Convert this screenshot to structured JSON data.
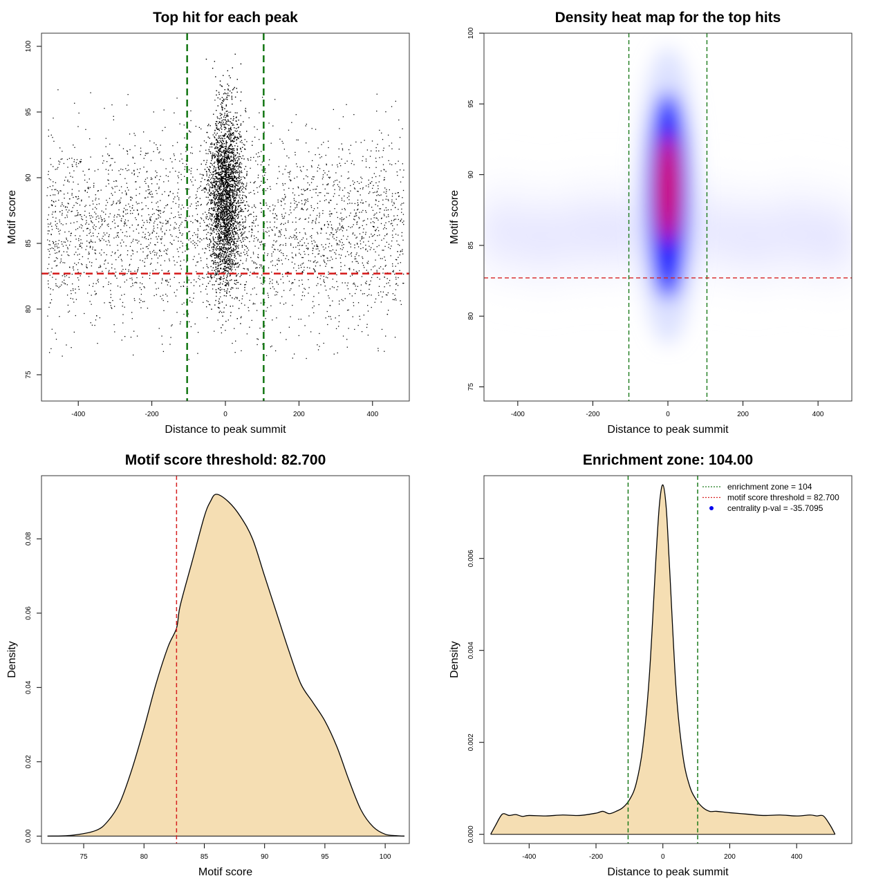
{
  "chart_data": [
    {
      "type": "scatter",
      "title": "Top hit for each peak",
      "xlabel": "Distance to peak summit",
      "ylabel": "Motif score",
      "xlim": [
        -500,
        500
      ],
      "ylim": [
        73,
        101
      ],
      "xticks": [
        -400,
        -200,
        0,
        200,
        400
      ],
      "yticks": [
        75,
        80,
        85,
        90,
        95,
        100
      ],
      "points_description": "thousands of points: uniform background over distance -500..500 with scores ~76-96, dense column within +/-60 of summit with scores ~79-99",
      "hlines": [
        {
          "y": 82.7,
          "color": "#d62020"
        }
      ],
      "vlines": [
        {
          "x": -104,
          "color": "#1a7a1a"
        },
        {
          "x": 104,
          "color": "#1a7a1a"
        }
      ]
    },
    {
      "type": "heatmap",
      "title": "Density heat map for the top hits",
      "xlabel": "Distance to peak summit",
      "ylabel": "Motif score",
      "xlim": [
        -490,
        490
      ],
      "ylim": [
        74,
        100
      ],
      "xticks": [
        -400,
        -200,
        0,
        200,
        400
      ],
      "yticks": [
        75,
        80,
        85,
        90,
        95,
        100
      ],
      "hotspot": {
        "x": 0,
        "y": 88.5
      },
      "color_scale": [
        "#ffffff",
        "#0000ff",
        "#ff0000"
      ],
      "hlines": [
        {
          "y": 82.7,
          "color": "#d62020"
        }
      ],
      "vlines": [
        {
          "x": -104,
          "color": "#1a7a1a"
        },
        {
          "x": 104,
          "color": "#1a7a1a"
        }
      ]
    },
    {
      "type": "area",
      "title": "Motif score threshold: 82.700",
      "xlabel": "Motif score",
      "ylabel": "Density",
      "xlim": [
        71.5,
        102
      ],
      "ylim": [
        -0.002,
        0.097
      ],
      "xticks": [
        75,
        80,
        85,
        90,
        95,
        100
      ],
      "yticks": [
        0.0,
        0.02,
        0.04,
        0.06,
        0.08
      ],
      "ytick_labels": [
        "0.00",
        "0.02",
        "0.04",
        "0.06",
        "0.08"
      ],
      "x": [
        72,
        74,
        76,
        77,
        78,
        79,
        80,
        81,
        82,
        82.7,
        83,
        84,
        85,
        85.5,
        86,
        87,
        88,
        89,
        90,
        91,
        92,
        93,
        94,
        95,
        96,
        97,
        98,
        99,
        100,
        101,
        101.6
      ],
      "values": [
        0,
        0.0002,
        0.0015,
        0.004,
        0.009,
        0.018,
        0.029,
        0.041,
        0.051,
        0.056,
        0.062,
        0.074,
        0.086,
        0.09,
        0.092,
        0.09,
        0.086,
        0.08,
        0.07,
        0.06,
        0.05,
        0.041,
        0.036,
        0.031,
        0.024,
        0.015,
        0.007,
        0.0025,
        0.0005,
        0.0001,
        0
      ],
      "fill": "#f5deb3",
      "vlines": [
        {
          "x": 82.7,
          "color": "#d62020"
        }
      ]
    },
    {
      "type": "area",
      "title": "Enrichment zone: 104.00",
      "xlabel": "Distance to peak summit",
      "ylabel": "Density",
      "xlim": [
        -535,
        565
      ],
      "ylim": [
        -0.0002,
        0.0078
      ],
      "xticks": [
        -400,
        -200,
        0,
        200,
        400
      ],
      "yticks": [
        0.0,
        0.002,
        0.004,
        0.006
      ],
      "ytick_labels": [
        "0.000",
        "0.002",
        "0.004",
        "0.006"
      ],
      "x": [
        -515,
        -500,
        -480,
        -460,
        -440,
        -420,
        -400,
        -350,
        -300,
        -250,
        -200,
        -180,
        -160,
        -140,
        -120,
        -100,
        -80,
        -60,
        -40,
        -20,
        -10,
        0,
        10,
        20,
        40,
        60,
        80,
        100,
        120,
        140,
        160,
        200,
        250,
        300,
        350,
        400,
        440,
        460,
        480,
        500,
        515
      ],
      "values": [
        0,
        0.0002,
        0.00044,
        0.00041,
        0.00043,
        0.00039,
        0.00041,
        0.0004,
        0.00042,
        0.00041,
        0.00046,
        0.0005,
        0.00045,
        0.0005,
        0.00058,
        0.00075,
        0.0011,
        0.0019,
        0.0035,
        0.0061,
        0.0072,
        0.0076,
        0.0071,
        0.0058,
        0.0031,
        0.0017,
        0.00105,
        0.00075,
        0.00058,
        0.0005,
        0.0005,
        0.00047,
        0.00044,
        0.00041,
        0.00042,
        0.0004,
        0.00042,
        0.0004,
        0.0004,
        0.0002,
        0
      ],
      "fill": "#f5deb3",
      "vlines": [
        {
          "x": -104,
          "color": "#1a7a1a"
        },
        {
          "x": 104,
          "color": "#1a7a1a"
        }
      ],
      "legend": {
        "position": "top-right",
        "entries": [
          {
            "label": "enrichment zone = 104",
            "color": "#1a7a1a",
            "kind": "dotted-line"
          },
          {
            "label": "motif score threshold = 82.700",
            "color": "#d62020",
            "kind": "dotted-line"
          },
          {
            "label": "centrality p-val = -35.7095",
            "color": "#0000ee",
            "kind": "dot"
          }
        ]
      }
    }
  ]
}
